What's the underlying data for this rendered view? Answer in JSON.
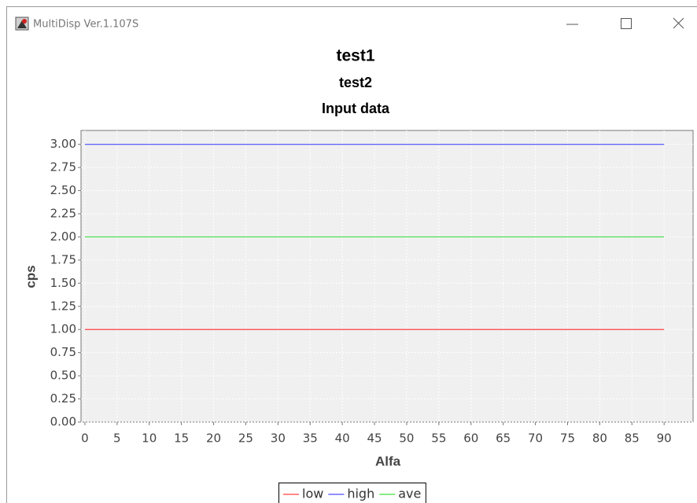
{
  "window": {
    "title": "MultiDisp Ver.1.107S"
  },
  "chart_data": {
    "type": "line",
    "title": "test1",
    "subtitle": "test2",
    "caption": "Input data",
    "x_label": "Alfa",
    "y_label": "cps",
    "x": [
      0,
      90
    ],
    "series": [
      {
        "name": "low",
        "color": "#ff4040",
        "values": [
          1,
          1
        ]
      },
      {
        "name": "high",
        "color": "#4a4aff",
        "values": [
          3,
          3
        ]
      },
      {
        "name": "ave",
        "color": "#40e040",
        "values": [
          2,
          2
        ]
      }
    ],
    "xlim": [
      -0.6,
      94.5
    ],
    "ylim": [
      0,
      3.15
    ],
    "xticks": [
      0,
      5,
      10,
      15,
      20,
      25,
      30,
      35,
      40,
      45,
      50,
      55,
      60,
      65,
      70,
      75,
      80,
      85,
      90
    ],
    "yticks": [
      {
        "value": 0,
        "label": "0.00"
      },
      {
        "value": 0.25,
        "label": "0.25"
      },
      {
        "value": 0.5,
        "label": "0.50"
      },
      {
        "value": 0.75,
        "label": "0.75"
      },
      {
        "value": 1,
        "label": "1.00"
      },
      {
        "value": 1.25,
        "label": "1.25"
      },
      {
        "value": 1.5,
        "label": "1.50"
      },
      {
        "value": 1.75,
        "label": "1.75"
      },
      {
        "value": 2,
        "label": "2.00"
      },
      {
        "value": 2.25,
        "label": "2.25"
      },
      {
        "value": 2.5,
        "label": "2.50"
      },
      {
        "value": 2.75,
        "label": "2.75"
      },
      {
        "value": 3,
        "label": "3.00"
      }
    ],
    "grid": true,
    "legend": "bottom"
  }
}
